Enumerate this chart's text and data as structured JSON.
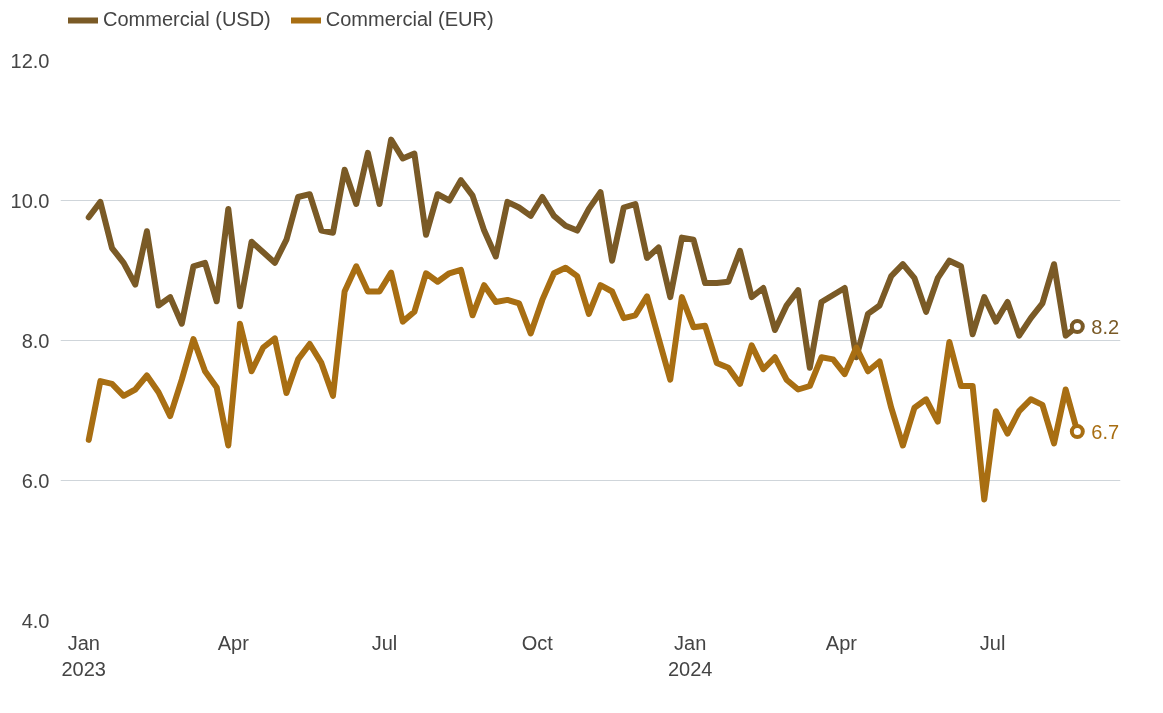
{
  "chart_data": {
    "type": "line",
    "x": [
      "2023-01-04",
      "2023-01-11",
      "2023-01-18",
      "2023-01-25",
      "2023-02-01",
      "2023-02-08",
      "2023-02-15",
      "2023-02-22",
      "2023-03-01",
      "2023-03-08",
      "2023-03-15",
      "2023-03-22",
      "2023-03-29",
      "2023-04-05",
      "2023-04-12",
      "2023-04-19",
      "2023-04-26",
      "2023-05-03",
      "2023-05-10",
      "2023-05-17",
      "2023-05-24",
      "2023-05-31",
      "2023-06-07",
      "2023-06-14",
      "2023-06-21",
      "2023-06-28",
      "2023-07-05",
      "2023-07-12",
      "2023-07-19",
      "2023-07-26",
      "2023-08-02",
      "2023-08-09",
      "2023-08-16",
      "2023-08-23",
      "2023-08-30",
      "2023-09-06",
      "2023-09-13",
      "2023-09-20",
      "2023-09-27",
      "2023-10-04",
      "2023-10-11",
      "2023-10-18",
      "2023-10-25",
      "2023-11-01",
      "2023-11-08",
      "2023-11-15",
      "2023-11-22",
      "2023-11-29",
      "2023-12-06",
      "2023-12-13",
      "2023-12-20",
      "2023-12-27",
      "2024-01-03",
      "2024-01-10",
      "2024-01-17",
      "2024-01-24",
      "2024-01-31",
      "2024-02-07",
      "2024-02-14",
      "2024-02-21",
      "2024-02-28",
      "2024-03-06",
      "2024-03-13",
      "2024-03-20",
      "2024-03-27",
      "2024-04-03",
      "2024-04-10",
      "2024-04-17",
      "2024-04-24",
      "2024-05-01",
      "2024-05-08",
      "2024-05-15",
      "2024-05-22",
      "2024-05-29",
      "2024-06-05",
      "2024-06-12",
      "2024-06-19",
      "2024-06-26",
      "2024-07-03",
      "2024-07-10",
      "2024-07-17",
      "2024-07-24",
      "2024-07-31",
      "2024-08-07",
      "2024-08-14",
      "2024-08-21"
    ],
    "series": [
      {
        "name": "Commercial (USD)",
        "color": "#7a5a26",
        "values": [
          9.76,
          9.98,
          9.32,
          9.11,
          8.8,
          9.56,
          8.5,
          8.62,
          8.24,
          9.06,
          9.11,
          8.56,
          9.88,
          8.49,
          9.41,
          9.26,
          9.11,
          9.44,
          10.05,
          10.09,
          9.57,
          9.54,
          10.44,
          9.95,
          10.68,
          9.95,
          10.87,
          10.6,
          10.67,
          9.51,
          10.09,
          10.0,
          10.29,
          10.07,
          9.57,
          9.2,
          9.98,
          9.9,
          9.78,
          10.05,
          9.78,
          9.64,
          9.57,
          9.88,
          10.12,
          9.14,
          9.9,
          9.95,
          9.18,
          9.33,
          8.62,
          9.47,
          9.44,
          8.82,
          8.82,
          8.84,
          9.28,
          8.62,
          8.75,
          8.15,
          8.5,
          8.72,
          7.61,
          8.55,
          8.65,
          8.75,
          7.76,
          8.38,
          8.5,
          8.92,
          9.09,
          8.89,
          8.41,
          8.89,
          9.14,
          9.06,
          8.09,
          8.62,
          8.27,
          8.55,
          8.07,
          8.32,
          8.53,
          9.09,
          8.07,
          8.2
        ],
        "value_labels": [
          null,
          null,
          null,
          null,
          null,
          null,
          null,
          null,
          null,
          null,
          null,
          null,
          null,
          null,
          null,
          null,
          null,
          null,
          null,
          null,
          null,
          null,
          null,
          null,
          null,
          null,
          null,
          null,
          null,
          null,
          null,
          null,
          null,
          null,
          null,
          null,
          null,
          null,
          null,
          null,
          null,
          null,
          null,
          null,
          null,
          null,
          null,
          null,
          null,
          null,
          null,
          null,
          null,
          null,
          null,
          null,
          null,
          null,
          null,
          null,
          null,
          null,
          null,
          null,
          null,
          null,
          null,
          null,
          null,
          null,
          null,
          null,
          null,
          null,
          null,
          null,
          null,
          null,
          null,
          null,
          null,
          null,
          null,
          null,
          null,
          "8.2"
        ]
      },
      {
        "name": "Commercial (EUR)",
        "color": "#a86e12",
        "values": [
          6.58,
          7.42,
          7.38,
          7.21,
          7.3,
          7.5,
          7.26,
          6.92,
          7.44,
          8.02,
          7.56,
          7.33,
          6.5,
          8.24,
          7.56,
          7.9,
          8.03,
          7.25,
          7.73,
          7.95,
          7.68,
          7.21,
          8.7,
          9.06,
          8.7,
          8.7,
          8.97,
          8.27,
          8.41,
          8.96,
          8.84,
          8.96,
          9.01,
          8.36,
          8.79,
          8.55,
          8.58,
          8.53,
          8.1,
          8.58,
          8.96,
          9.04,
          8.92,
          8.38,
          8.79,
          8.7,
          8.32,
          8.36,
          8.63,
          8.03,
          7.44,
          8.62,
          8.19,
          8.21,
          7.68,
          7.61,
          7.38,
          7.93,
          7.59,
          7.76,
          7.44,
          7.3,
          7.35,
          7.76,
          7.73,
          7.52,
          7.9,
          7.56,
          7.7,
          7.04,
          6.5,
          7.04,
          7.16,
          6.84,
          7.98,
          7.35,
          7.35,
          5.73,
          6.99,
          6.67,
          6.99,
          7.16,
          7.08,
          6.53,
          7.3,
          6.7
        ],
        "value_labels": [
          null,
          null,
          null,
          null,
          null,
          null,
          null,
          null,
          null,
          null,
          null,
          null,
          null,
          null,
          null,
          null,
          null,
          null,
          null,
          null,
          null,
          null,
          null,
          null,
          null,
          null,
          null,
          null,
          null,
          null,
          null,
          null,
          null,
          null,
          null,
          null,
          null,
          null,
          null,
          null,
          null,
          null,
          null,
          null,
          null,
          null,
          null,
          null,
          null,
          null,
          null,
          null,
          null,
          null,
          null,
          null,
          null,
          null,
          null,
          null,
          null,
          null,
          null,
          null,
          null,
          null,
          null,
          null,
          null,
          null,
          null,
          null,
          null,
          null,
          null,
          null,
          null,
          null,
          null,
          null,
          null,
          null,
          null,
          null,
          null,
          "6.7"
        ]
      }
    ],
    "xlim": [
      "2022-12-18",
      "2024-09-16"
    ],
    "xticks": [
      {
        "value": "2023-01-01",
        "label": "Jan\n2023"
      },
      {
        "value": "2023-04-01",
        "label": "Apr"
      },
      {
        "value": "2023-07-01",
        "label": "Jul"
      },
      {
        "value": "2023-10-01",
        "label": "Oct"
      },
      {
        "value": "2024-01-01",
        "label": "Jan\n2024"
      },
      {
        "value": "2024-04-01",
        "label": "Apr"
      },
      {
        "value": "2024-07-01",
        "label": "Jul"
      }
    ],
    "ylim": [
      4,
      12
    ],
    "yticks": [
      {
        "value": 4,
        "label": "4.0"
      },
      {
        "value": 6,
        "label": "6.0"
      },
      {
        "value": 8,
        "label": "8.0"
      },
      {
        "value": 10,
        "label": "10.0"
      },
      {
        "value": 12,
        "label": "12.0"
      }
    ],
    "grid": "y",
    "legend": "top left",
    "line_style": "solid"
  }
}
